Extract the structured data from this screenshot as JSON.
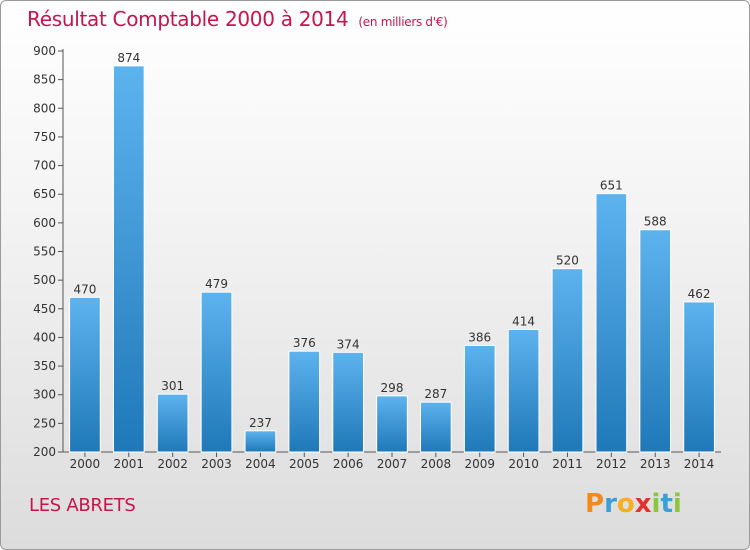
{
  "title": "Résultat Comptable 2000 à 2014",
  "unit": "(en milliers d'€)",
  "town": "LES ABRETS",
  "brand": [
    "P",
    "r",
    "o",
    "x",
    "i",
    "t",
    "i"
  ],
  "colors": {
    "title": "#c8144c",
    "bar_light": "#5db3ee",
    "bar_dark": "#1f78b8",
    "axis": "#555555"
  },
  "chart_data": {
    "type": "bar",
    "title": "Résultat Comptable 2000 à 2014",
    "xlabel": "",
    "ylabel": "",
    "categories": [
      "2000",
      "2001",
      "2002",
      "2003",
      "2004",
      "2005",
      "2006",
      "2007",
      "2008",
      "2009",
      "2010",
      "2011",
      "2012",
      "2013",
      "2014"
    ],
    "values": [
      470,
      874,
      301,
      479,
      237,
      376,
      374,
      298,
      287,
      386,
      414,
      520,
      651,
      588,
      462
    ],
    "ylim": [
      200,
      900
    ],
    "yticks": [
      200,
      250,
      300,
      350,
      400,
      450,
      500,
      550,
      600,
      650,
      700,
      750,
      800,
      850,
      900
    ],
    "grid": false,
    "legend": "none"
  }
}
